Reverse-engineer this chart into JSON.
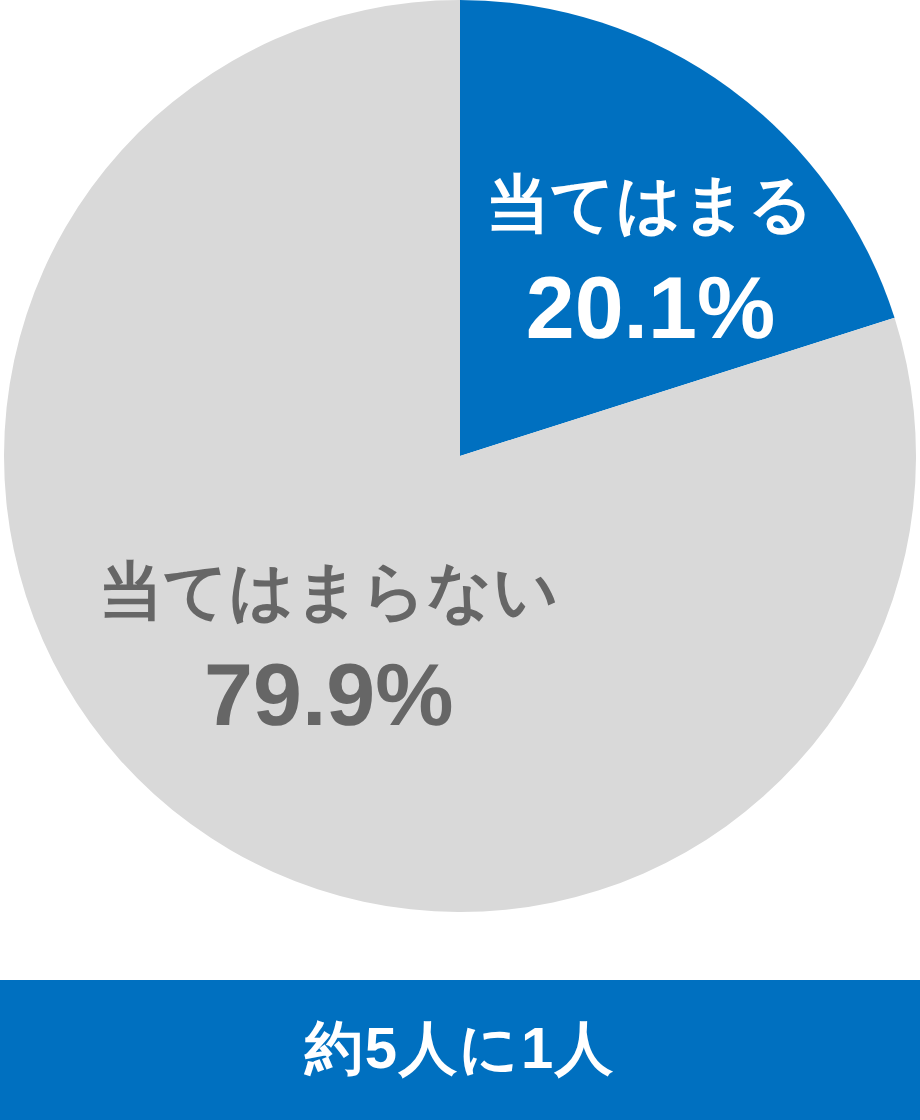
{
  "chart_data": {
    "type": "pie",
    "categories": [
      "当てはまる",
      "当てはまらない"
    ],
    "values": [
      20.1,
      79.9
    ],
    "colors": [
      "#0070c0",
      "#d9d9d9"
    ],
    "value_labels": [
      "20.1%",
      "79.9%"
    ],
    "annotations": [
      "約5人に1人"
    ]
  }
}
